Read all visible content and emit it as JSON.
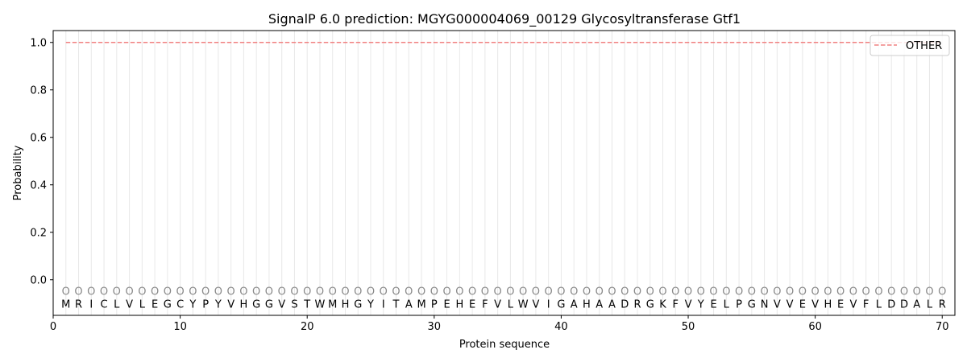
{
  "chart_data": {
    "type": "line",
    "title": "SignalP 6.0 prediction: MGYG000004069_00129 Glycosyltransferase Gtf1",
    "xlabel": "Protein sequence",
    "ylabel": "Probability",
    "xlim": [
      0,
      71
    ],
    "ylim": [
      -0.15,
      1.05
    ],
    "xticks": [
      0,
      10,
      20,
      30,
      40,
      50,
      60,
      70
    ],
    "yticks": [
      0.0,
      0.2,
      0.4,
      0.6,
      0.8,
      1.0
    ],
    "ytick_labels": [
      "0.0",
      "0.2",
      "0.4",
      "0.6",
      "0.8",
      "1.0"
    ],
    "grid": "vertical lines at each residue",
    "legend_placement": "top-right",
    "series": [
      {
        "name": "OTHER",
        "color": "#f08080",
        "style": "dashed",
        "x_start": 1,
        "x_end": 70,
        "value": 1.0
      }
    ],
    "sequence": [
      "M",
      "R",
      "I",
      "C",
      "L",
      "V",
      "L",
      "E",
      "G",
      "C",
      "Y",
      "P",
      "Y",
      "V",
      "H",
      "G",
      "G",
      "V",
      "S",
      "T",
      "W",
      "M",
      "H",
      "G",
      "Y",
      "I",
      "T",
      "A",
      "M",
      "P",
      "E",
      "H",
      "E",
      "F",
      "V",
      "L",
      "W",
      "V",
      "I",
      "G",
      "A",
      "H",
      "A",
      "A",
      "D",
      "R",
      "G",
      "K",
      "F",
      "V",
      "Y",
      "E",
      "L",
      "P",
      "G",
      "N",
      "V",
      "V",
      "E",
      "V",
      "H",
      "E",
      "V",
      "F",
      "L",
      "D",
      "D",
      "A",
      "L",
      "R"
    ],
    "labels_per_residue": "O",
    "label_y": -0.05
  }
}
